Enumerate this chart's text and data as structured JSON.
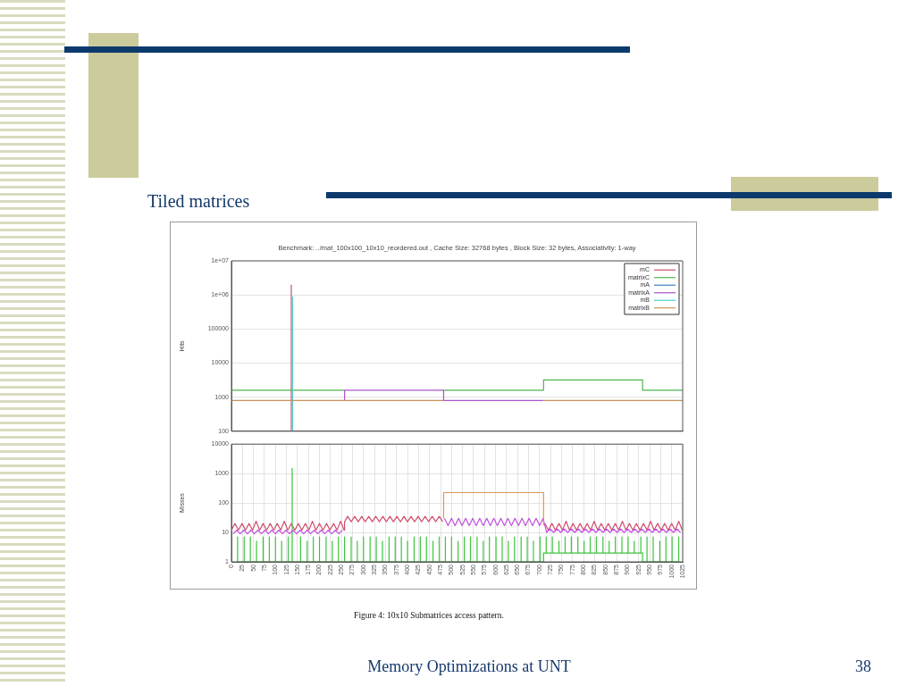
{
  "chart_data": [
    {
      "type": "line",
      "title": "Benchmark: ../mat_100x100_10x10_reordered.out , Cache Size: 32768 bytes , Block Size: 32 bytes, Associativity: 1-way",
      "subtitle": "Tiled matrices",
      "ylabel": "Hits",
      "xlim": [
        0,
        1025
      ],
      "ylim": [
        100,
        10000000
      ],
      "yticks": [
        100,
        1000,
        10000,
        100000,
        {
          "value": 1000000,
          "label": "1e+06"
        },
        {
          "value": 10000000,
          "label": "1e+07"
        }
      ],
      "log": true,
      "grid": "y",
      "legend": "top right",
      "tick_labels": "y",
      "series": [
        {
          "name": "mC",
          "color": "#c8506a",
          "x": [
            136,
            136
          ],
          "values": [
            100,
            2000000
          ]
        },
        {
          "name": "matrixC",
          "color": "#4db34d",
          "x": [
            0,
            257,
            370,
            482,
            709,
            709,
            934,
            934,
            1025
          ],
          "values": [
            1600,
            1600,
            null,
            1600,
            1600,
            3200,
            3200,
            1600,
            1600
          ]
        },
        {
          "name": "mA",
          "color": "#3f7fbf"
        },
        {
          "name": "matrixA",
          "color": "#a855c8",
          "x": [
            257,
            257,
            482,
            482,
            709
          ],
          "values": [
            800,
            1600,
            1600,
            800,
            800
          ]
        },
        {
          "name": "mB",
          "color": "#4fd0d0",
          "x": [
            139,
            139
          ],
          "values": [
            100,
            900000
          ]
        },
        {
          "name": "matrixB",
          "color": "#c8925a",
          "x": [
            0,
            482,
            595,
            709,
            1025
          ],
          "values": [
            800,
            800,
            null,
            800,
            800
          ]
        }
      ]
    },
    {
      "type": "line",
      "ylabel": "Misses",
      "xlim": [
        0,
        1025
      ],
      "xticks": [
        0,
        25,
        50,
        75,
        100,
        125,
        150,
        175,
        200,
        225,
        250,
        275,
        300,
        325,
        350,
        375,
        400,
        425,
        450,
        475,
        500,
        525,
        550,
        575,
        600,
        625,
        650,
        675,
        700,
        725,
        750,
        775,
        800,
        825,
        850,
        875,
        900,
        925,
        950,
        975,
        1000,
        1025
      ],
      "ylim": [
        1,
        10000
      ],
      "yticks": [
        1,
        10,
        100,
        1000,
        10000
      ],
      "log": true,
      "grid": true,
      "annotations": [
        "Figure 4: 10x10 Submatrices access pattern.",
        "Memory Optimizations at UNT",
        "38"
      ],
      "series": [
        {
          "color": "#d0506e",
          "x": [
            0,
            8,
            16,
            24,
            32,
            40,
            48,
            56,
            64,
            72,
            80,
            88,
            96,
            104,
            112,
            120,
            128,
            136,
            144,
            152,
            160,
            168,
            176,
            184,
            192,
            200,
            208,
            216,
            224,
            232,
            240,
            248,
            256,
            257,
            264,
            272,
            280,
            288,
            296,
            304,
            312,
            320,
            328,
            336,
            344,
            352,
            360,
            368,
            376,
            384,
            392,
            400,
            408,
            416,
            424,
            432,
            440,
            448,
            456,
            464,
            472,
            480,
            595,
            712,
            720,
            728,
            736,
            744,
            752,
            760,
            768,
            776,
            784,
            792,
            800,
            808,
            816,
            824,
            832,
            840,
            848,
            856,
            864,
            872,
            880,
            888,
            896,
            904,
            912,
            920,
            928,
            936,
            944,
            952,
            960,
            968,
            976,
            984,
            992,
            1000,
            1008,
            1016,
            1024
          ],
          "values": [
            12,
            20,
            12,
            20,
            12,
            20,
            12,
            24,
            12,
            20,
            12,
            20,
            12,
            20,
            12,
            24,
            12,
            20,
            12,
            20,
            12,
            20,
            12,
            24,
            12,
            20,
            12,
            20,
            12,
            20,
            12,
            24,
            12,
            23,
            35,
            23,
            35,
            23,
            35,
            23,
            35,
            23,
            35,
            23,
            35,
            23,
            35,
            23,
            35,
            23,
            35,
            23,
            35,
            23,
            35,
            23,
            35,
            23,
            35,
            23,
            35,
            23,
            null,
            20,
            12,
            20,
            12,
            20,
            12,
            24,
            12,
            20,
            12,
            20,
            12,
            20,
            12,
            24,
            12,
            20,
            12,
            20,
            12,
            20,
            12,
            24,
            12,
            20,
            12,
            20,
            12,
            20,
            12,
            24,
            12,
            20,
            12,
            20,
            12,
            20,
            12,
            24,
            12
          ]
        },
        {
          "color": "#3cc43c",
          "x": [
            14,
            14,
            14,
            29,
            29,
            29,
            43,
            43,
            43,
            57,
            57,
            57,
            72,
            72,
            72,
            86,
            86,
            86,
            100,
            100,
            100,
            114,
            114,
            114,
            129,
            129,
            129,
            138,
            138,
            138,
            157,
            157,
            157,
            172,
            172,
            172,
            186,
            186,
            186,
            200,
            200,
            200,
            215,
            215,
            215,
            229,
            229,
            229,
            243,
            243,
            243,
            257,
            257,
            257,
            272,
            272,
            272,
            286,
            286,
            286,
            300,
            300,
            300,
            315,
            315,
            315,
            329,
            329,
            329,
            343,
            343,
            343,
            358,
            358,
            358,
            372,
            372,
            372,
            386,
            386,
            386,
            400,
            400,
            400,
            415,
            415,
            415,
            429,
            429,
            429,
            443,
            443,
            443,
            458,
            458,
            458,
            472,
            472,
            472,
            486,
            486,
            486,
            500,
            500,
            500,
            515,
            515,
            515,
            529,
            529,
            529,
            543,
            543,
            543,
            558,
            558,
            558,
            572,
            572,
            572,
            586,
            586,
            586,
            601,
            601,
            601,
            615,
            615,
            615,
            629,
            629,
            629,
            643,
            643,
            643,
            658,
            658,
            658,
            672,
            672,
            672,
            686,
            686,
            686,
            701,
            701,
            701,
            709,
            709,
            715,
            715,
            715,
            729,
            729,
            729,
            744,
            744,
            744,
            758,
            758,
            758,
            772,
            772,
            772,
            787,
            787,
            787,
            801,
            801,
            801,
            815,
            815,
            815,
            829,
            829,
            829,
            844,
            844,
            844,
            858,
            858,
            858,
            872,
            872,
            872,
            887,
            887,
            887,
            901,
            901,
            901,
            915,
            915,
            915,
            930,
            930,
            930,
            934,
            934,
            944,
            944,
            944,
            958,
            958,
            958,
            973,
            973,
            973,
            987,
            987,
            987,
            1001,
            1001,
            1001,
            1016,
            1016,
            1016
          ],
          "values": [
            1,
            7,
            1,
            1,
            7,
            1,
            1,
            7,
            1,
            1,
            5,
            1,
            1,
            7,
            1,
            1,
            7,
            1,
            1,
            7,
            1,
            1,
            5,
            1,
            1,
            7,
            1,
            1,
            1500,
            1,
            1,
            7,
            1,
            1,
            5,
            1,
            1,
            7,
            1,
            1,
            7,
            1,
            1,
            7,
            1,
            1,
            5,
            1,
            1,
            7,
            1,
            1,
            7,
            1,
            1,
            7,
            1,
            1,
            5,
            1,
            1,
            7,
            1,
            1,
            7,
            1,
            1,
            7,
            1,
            1,
            5,
            1,
            1,
            7,
            1,
            1,
            7,
            1,
            1,
            7,
            1,
            1,
            5,
            1,
            1,
            7,
            1,
            1,
            7,
            1,
            1,
            7,
            1,
            1,
            5,
            1,
            1,
            7,
            1,
            1,
            7,
            1,
            1,
            7,
            1,
            1,
            5,
            1,
            1,
            7,
            1,
            1,
            7,
            1,
            1,
            7,
            1,
            1,
            5,
            1,
            1,
            7,
            1,
            1,
            7,
            1,
            1,
            7,
            1,
            1,
            5,
            1,
            1,
            7,
            1,
            1,
            7,
            1,
            1,
            7,
            1,
            1,
            5,
            1,
            1,
            7,
            1,
            1,
            2,
            2,
            7,
            2,
            2,
            7,
            2,
            2,
            5,
            2,
            2,
            7,
            2,
            2,
            7,
            2,
            2,
            7,
            2,
            2,
            5,
            2,
            2,
            7,
            2,
            2,
            7,
            2,
            2,
            7,
            2,
            2,
            5,
            2,
            2,
            7,
            2,
            2,
            7,
            2,
            2,
            7,
            2,
            2,
            5,
            2,
            2,
            7,
            2,
            2,
            1,
            1,
            7,
            1,
            1,
            7,
            1,
            1,
            5,
            1,
            1,
            7,
            1,
            1,
            7,
            1,
            1,
            7,
            1
          ]
        },
        {
          "color": "#c24fe0",
          "x": [
            4,
            12,
            20,
            28,
            36,
            44,
            52,
            60,
            68,
            76,
            84,
            92,
            100,
            108,
            116,
            124,
            132,
            140,
            148,
            156,
            164,
            172,
            180,
            188,
            196,
            204,
            212,
            220,
            228,
            236,
            244,
            252,
            370,
            484,
            492,
            500,
            508,
            516,
            524,
            532,
            540,
            548,
            556,
            564,
            572,
            580,
            588,
            596,
            604,
            612,
            620,
            628,
            636,
            644,
            652,
            660,
            668,
            676,
            684,
            692,
            700,
            708,
            716,
            724,
            732,
            740,
            748,
            756,
            764,
            772,
            780,
            788,
            796,
            804,
            812,
            820,
            828,
            836,
            844,
            852,
            860,
            868,
            876,
            884,
            892,
            900,
            908,
            916,
            924,
            932,
            940,
            948,
            956,
            964,
            972,
            980,
            988,
            996,
            1004,
            1012,
            1020
          ],
          "values": [
            9,
            12,
            9,
            12,
            9,
            12,
            9,
            12,
            9,
            12,
            9,
            12,
            9,
            12,
            9,
            12,
            9,
            12,
            9,
            12,
            9,
            12,
            9,
            12,
            9,
            12,
            9,
            12,
            9,
            12,
            9,
            12,
            null,
            30,
            17,
            30,
            17,
            30,
            17,
            30,
            17,
            30,
            17,
            30,
            17,
            30,
            17,
            30,
            17,
            30,
            17,
            30,
            17,
            30,
            17,
            30,
            17,
            30,
            17,
            30,
            17,
            30,
            10,
            13,
            10,
            13,
            10,
            13,
            10,
            13,
            10,
            13,
            10,
            13,
            10,
            13,
            10,
            13,
            10,
            13,
            10,
            13,
            10,
            13,
            10,
            13,
            10,
            13,
            10,
            13,
            10,
            13,
            10,
            13,
            10,
            13,
            10,
            13,
            10,
            13,
            10
          ]
        },
        {
          "color": "#d89858",
          "x": [
            482,
            482,
            709,
            709
          ],
          "values": [
            30,
            225,
            225,
            18
          ]
        }
      ]
    }
  ]
}
